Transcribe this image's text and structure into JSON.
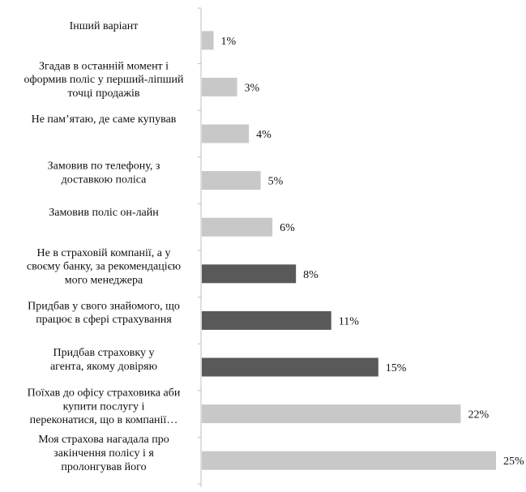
{
  "chart_data": {
    "type": "bar",
    "orientation": "horizontal",
    "title": "",
    "xlabel": "",
    "ylabel": "",
    "grid": false,
    "legend": "none",
    "value_suffix": "%",
    "xlim": [
      0,
      25
    ],
    "categories": [
      "Інший варіант",
      "Згадав в останній момент і оформив поліс у перший-ліпший точці продажів",
      "Не пам’ятаю, де саме купував",
      "Замовив  по телефону, з доставкою поліса",
      "Замовив поліс он-лайн",
      "Не в страховій компанії, а у своєму банку, за рекомендацією мого менеджера",
      "Придбав  у свого знайомого, що працює в сфері страхування",
      "Придбав страховку у агента, якому довіряю",
      "Поїхав до офісу страховика аби купити послугу і переконатися, що в компанії…",
      "Моя страхова нагадала про закінчення полісу і я пролонгував його"
    ],
    "label_lines": [
      [
        "Інший варіант"
      ],
      [
        "Згадав в останній момент і",
        "оформив поліс у перший-ліпший",
        "точці продажів"
      ],
      [
        "Не пам’ятаю, де саме купував"
      ],
      [
        "Замовив  по телефону, з",
        "доставкою поліса"
      ],
      [
        "Замовив поліс он-лайн"
      ],
      [
        "Не в страховій компанії, а у",
        "своєму банку, за рекомендацією",
        "мого менеджера"
      ],
      [
        "Придбав  у свого знайомого, що",
        "працює в сфері страхування"
      ],
      [
        "Придбав страховку у",
        "агента, якому довіряю"
      ],
      [
        "Поїхав до офісу страховика аби",
        "купити послугу і",
        "переконатися, що в компанії…"
      ],
      [
        "Моя страхова нагадала про",
        "закінчення полісу і я",
        "пролонгував його"
      ]
    ],
    "values": [
      1,
      3,
      4,
      5,
      6,
      8,
      11,
      15,
      22,
      25
    ],
    "value_labels": [
      "1%",
      "3%",
      "4%",
      "5%",
      "6%",
      "8%",
      "11%",
      "15%",
      "22%",
      "25%"
    ],
    "bar_colors": [
      "#c8c8c8",
      "#c8c8c8",
      "#c8c8c8",
      "#c8c8c8",
      "#c8c8c8",
      "#595959",
      "#595959",
      "#595959",
      "#c8c8c8",
      "#c8c8c8"
    ],
    "axis_color": "#bfbfbf"
  }
}
